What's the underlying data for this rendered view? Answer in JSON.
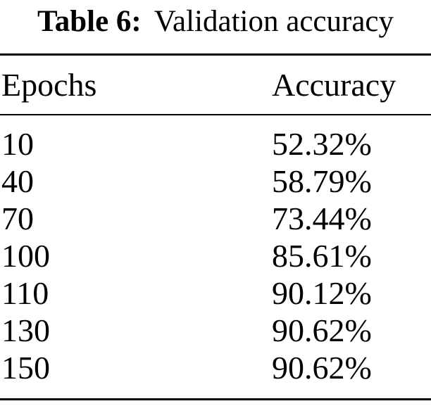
{
  "caption": {
    "label": "Table 6:",
    "text": "Validation accuracy"
  },
  "table": {
    "headers": {
      "epochs": "Epochs",
      "accuracy": "Accuracy"
    },
    "rows": [
      {
        "epochs": "10",
        "accuracy": "52.32%"
      },
      {
        "epochs": "40",
        "accuracy": "58.79%"
      },
      {
        "epochs": "70",
        "accuracy": "73.44%"
      },
      {
        "epochs": "100",
        "accuracy": "85.61%"
      },
      {
        "epochs": "110",
        "accuracy": "90.12%"
      },
      {
        "epochs": "130",
        "accuracy": "90.62%"
      },
      {
        "epochs": "150",
        "accuracy": "90.62%"
      }
    ]
  },
  "colors": {
    "text": "#000000",
    "background": "#ffffff",
    "rule": "#000000"
  },
  "chart_data": {
    "type": "table",
    "title": "Table 6: Validation accuracy",
    "columns": [
      "Epochs",
      "Accuracy"
    ],
    "rows": [
      [
        10,
        "52.32%"
      ],
      [
        40,
        "58.79%"
      ],
      [
        70,
        "73.44%"
      ],
      [
        100,
        "85.61%"
      ],
      [
        110,
        "90.12%"
      ],
      [
        130,
        "90.62%"
      ],
      [
        150,
        "90.62%"
      ]
    ]
  }
}
